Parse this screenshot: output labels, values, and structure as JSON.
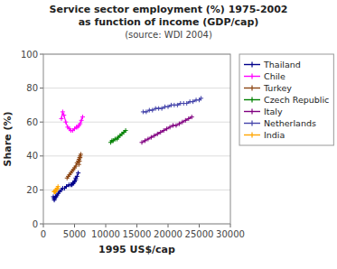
{
  "chart_data": {
    "type": "line",
    "title": "Service sector employment (%) 1975-2002",
    "subtitle": "as function of income (GDP/cap)",
    "annotations": [
      "(source: WDI 2004)"
    ],
    "x_label": "1995 US$/cap",
    "y_label": "Share (%)",
    "xlim": [
      0,
      30000
    ],
    "ylim": [
      0,
      100
    ],
    "xticks": [
      0,
      5000,
      10000,
      15000,
      20000,
      25000,
      30000
    ],
    "yticks": [
      0,
      20,
      40,
      60,
      80,
      100
    ],
    "grid": true,
    "legend": "right",
    "marker": "plus",
    "series": [
      {
        "name": "Thailand",
        "color": "#00008B",
        "x": [
          1600,
          1700,
          1750,
          1850,
          1950,
          2050,
          2200,
          2400,
          2600,
          2900,
          3100,
          3400,
          3700,
          4100,
          4400,
          4700,
          5000,
          5200,
          4800,
          4600,
          4800,
          5000,
          5200,
          5400,
          5600
        ],
        "values": [
          16,
          15,
          14,
          15,
          16,
          16,
          17,
          18,
          19,
          20,
          21,
          21,
          22,
          23,
          23,
          24,
          25,
          26,
          24,
          23,
          24,
          25,
          27,
          28,
          30
        ]
      },
      {
        "name": "Chile",
        "color": "#FF00FF",
        "x": [
          2900,
          3100,
          3300,
          3600,
          3900,
          4200,
          4400,
          4700,
          5000,
          5300,
          5500,
          5700,
          5900,
          6100,
          6300
        ],
        "values": [
          62,
          66,
          64,
          60,
          57,
          56,
          55,
          55,
          56,
          57,
          57,
          58,
          59,
          61,
          63
        ]
      },
      {
        "name": "Turkey",
        "color": "#8B4513",
        "x": [
          3800,
          4000,
          4200,
          4400,
          4600,
          4800,
          5000,
          5200,
          5400,
          5600,
          5700,
          5800,
          5900,
          6000,
          5900,
          5800,
          5700
        ],
        "values": [
          27,
          28,
          29,
          30,
          31,
          32,
          33,
          34,
          36,
          37,
          38,
          39,
          40,
          41,
          39,
          37,
          35
        ]
      },
      {
        "name": "Czech Republic",
        "color": "#008000",
        "x": [
          10800,
          11000,
          11200,
          11500,
          11800,
          12000,
          12300,
          12600,
          12900,
          13200
        ],
        "values": [
          48,
          49,
          49,
          50,
          50,
          51,
          52,
          53,
          54,
          55
        ]
      },
      {
        "name": "Italy",
        "color": "#800080",
        "x": [
          15800,
          16300,
          16800,
          17300,
          17800,
          18300,
          18800,
          19300,
          19800,
          20300,
          20800,
          21300,
          21800,
          22300,
          22800,
          23300,
          23800
        ],
        "values": [
          48,
          49,
          50,
          51,
          52,
          53,
          54,
          55,
          56,
          57,
          58,
          58,
          59,
          60,
          61,
          62,
          63
        ]
      },
      {
        "name": "Netherlands",
        "color": "#4444AA",
        "x": [
          16000,
          16500,
          17000,
          17500,
          18000,
          18500,
          19000,
          19500,
          20000,
          20500,
          21000,
          21500,
          22000,
          22500,
          23000,
          23500,
          24000,
          24500,
          25000,
          25300
        ],
        "values": [
          66,
          66,
          67,
          67,
          68,
          68,
          68,
          69,
          69,
          70,
          70,
          70,
          71,
          71,
          71,
          72,
          72,
          73,
          73,
          74
        ]
      },
      {
        "name": "India",
        "color": "#FFA500",
        "x": [
          1700,
          1800,
          1850,
          1900,
          1950,
          2000,
          2050,
          2100,
          2150,
          2200,
          2250,
          2300,
          2350
        ],
        "values": [
          19,
          19,
          19,
          19,
          19,
          20,
          20,
          20,
          20,
          21,
          21,
          21,
          22
        ]
      }
    ]
  }
}
